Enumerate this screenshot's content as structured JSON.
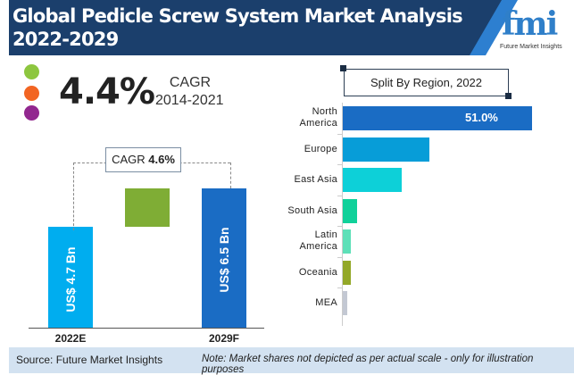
{
  "header": {
    "title_line1": "Global Pedicle Screw System Market Analysis",
    "title_line2": "2022-2029"
  },
  "logo": {
    "text": "fmi",
    "subtitle": "Future Market Insights"
  },
  "stat": {
    "value": "4.4%",
    "label": "CAGR",
    "period": "2014-2021",
    "dot_colors": [
      "#8dc63f",
      "#f26522",
      "#92278f"
    ]
  },
  "chart_data": [
    {
      "type": "bar",
      "categories": [
        "2022E",
        "2029F"
      ],
      "values": [
        4.7,
        6.5
      ],
      "value_labels": [
        "US$ 4.7 Bn",
        "US$ 6.5 Bn"
      ],
      "unit": "US$ Bn",
      "cagr_label": "CAGR",
      "cagr_value": "4.6%",
      "colors": [
        "#00adef",
        "#1a6cc4",
        "#7fad35"
      ]
    },
    {
      "type": "bar",
      "orientation": "horizontal",
      "title": "Split By Region, 2022",
      "categories": [
        "North America",
        "Europe",
        "East Asia",
        "South Asia",
        "Latin America",
        "Oceania",
        "MEA"
      ],
      "values": [
        51.0,
        23.3,
        15.9,
        3.8,
        2.2,
        2.2,
        1.2
      ],
      "data_labels": [
        "51.0%",
        "",
        "",
        "",
        "",
        "",
        ""
      ],
      "colors": [
        "#1a6cc4",
        "#079dd8",
        "#0dd0d8",
        "#10d19a",
        "#5ee0b8",
        "#93a828",
        "#c3c8d3"
      ]
    }
  ],
  "footer": {
    "source": "Source: Future Market Insights",
    "note": "Note: Market shares not depicted as per actual scale - only for illustration purposes"
  }
}
